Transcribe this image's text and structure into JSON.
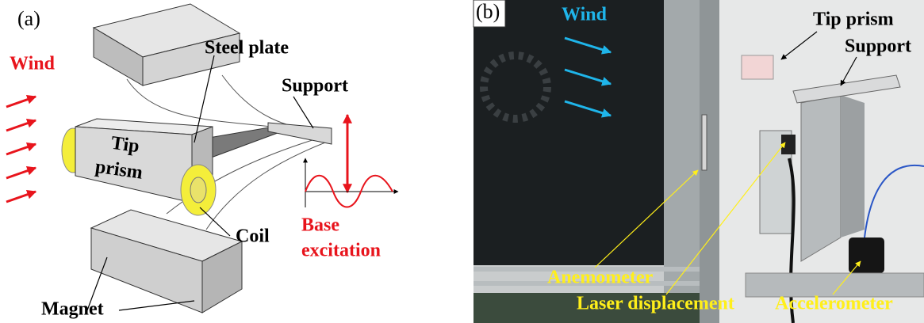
{
  "panels": [
    {
      "label": "(a)",
      "wind": "Wind",
      "steel_plate": "Steel plate",
      "support": "Support",
      "tip_prism": [
        "Tip",
        "prism"
      ],
      "coil": "Coil",
      "base_excitation": [
        "Base",
        "excitation"
      ],
      "magnet": "Magnet"
    },
    {
      "label": "(b)",
      "wind": "Wind",
      "tip_prism": "Tip prism",
      "support": "Support",
      "anemometer": "Anemometer",
      "laser_displacement": "Laser displacement",
      "accelerometer": "Accelerometer"
    }
  ]
}
